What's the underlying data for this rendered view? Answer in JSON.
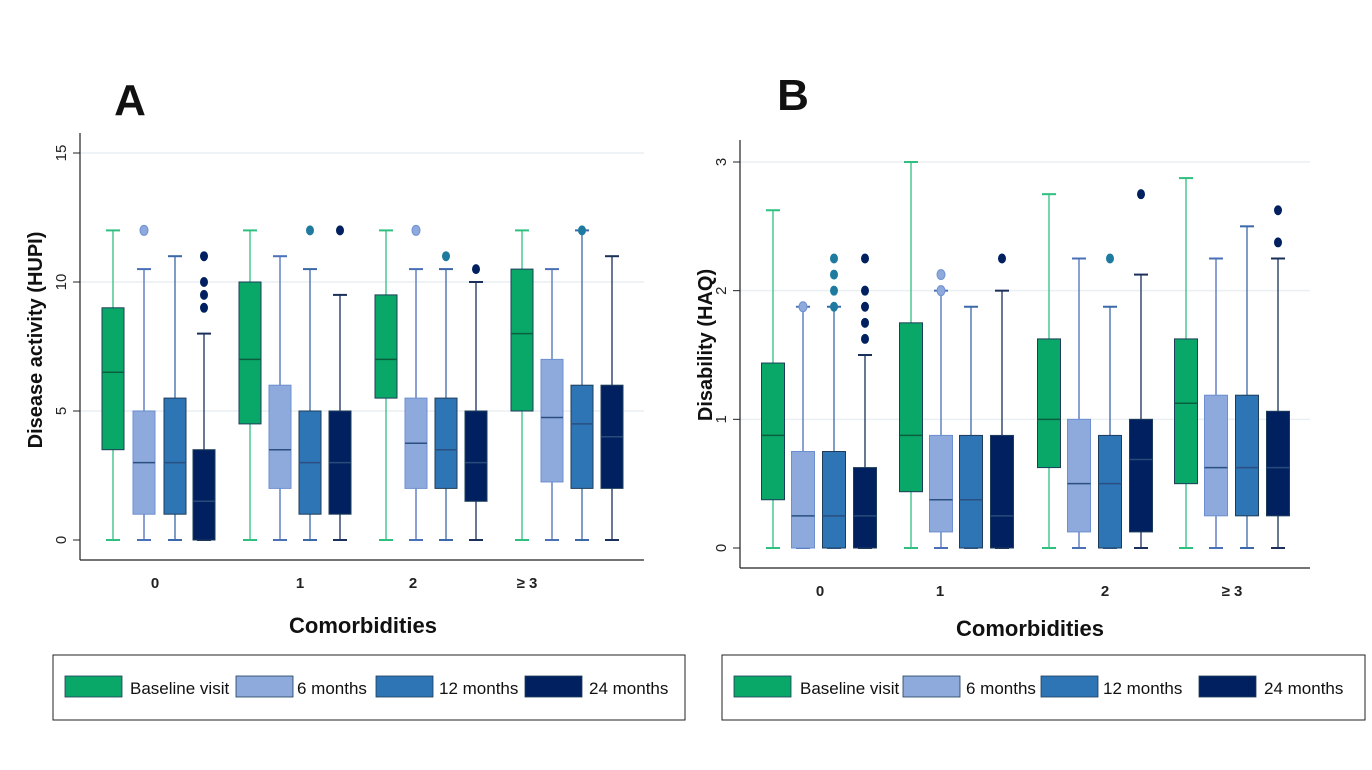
{
  "colors": {
    "baseline": "#0aa868",
    "m6": "#8eaadc",
    "m12": "#2e75b6",
    "m24": "#002060",
    "outlier_m12": "#1f7aa0"
  },
  "chart_data": [
    {
      "type": "box",
      "panel_label": "A",
      "ylabel": "Disease activity (HUPI)",
      "xlabel": "Comorbidities",
      "ylim": [
        0,
        15
      ],
      "yticks": [
        "0",
        "5",
        "10",
        "15"
      ],
      "ytick_values": [
        0,
        5,
        10,
        15
      ],
      "grid": true,
      "legend_position": "bottom",
      "categories": [
        "0",
        "1",
        "2",
        "≥ 3"
      ],
      "legend": [
        "Baseline visit",
        "6 months",
        "12 months",
        "24 months"
      ],
      "series": [
        {
          "name": "Baseline visit",
          "boxes": [
            {
              "min": 0,
              "q1": 3.5,
              "median": 6.5,
              "q3": 9,
              "max": 12,
              "outliers": []
            },
            {
              "min": 0,
              "q1": 4.5,
              "median": 7,
              "q3": 10,
              "max": 12,
              "outliers": []
            },
            {
              "min": 0,
              "q1": 5.5,
              "median": 7,
              "q3": 9.5,
              "max": 12,
              "outliers": []
            },
            {
              "min": 0,
              "q1": 5,
              "median": 8,
              "q3": 10.5,
              "max": 12,
              "outliers": []
            }
          ]
        },
        {
          "name": "6 months",
          "boxes": [
            {
              "min": 0,
              "q1": 1,
              "median": 3,
              "q3": 5,
              "max": 10.5,
              "outliers": [
                12
              ]
            },
            {
              "min": 0,
              "q1": 2,
              "median": 3.5,
              "q3": 6,
              "max": 11,
              "outliers": []
            },
            {
              "min": 0,
              "q1": 2,
              "median": 3.75,
              "q3": 5.5,
              "max": 10.5,
              "outliers": [
                12
              ]
            },
            {
              "min": 0,
              "q1": 2.25,
              "median": 4.75,
              "q3": 7,
              "max": 10.5,
              "outliers": []
            }
          ]
        },
        {
          "name": "12 months",
          "boxes": [
            {
              "min": 0,
              "q1": 1,
              "median": 3,
              "q3": 5.5,
              "max": 11,
              "outliers": []
            },
            {
              "min": 0,
              "q1": 1,
              "median": 3,
              "q3": 5,
              "max": 10.5,
              "outliers": [
                12
              ]
            },
            {
              "min": 0,
              "q1": 2,
              "median": 3.5,
              "q3": 5.5,
              "max": 10.5,
              "outliers": [
                11
              ]
            },
            {
              "min": 0,
              "q1": 2,
              "median": 4.5,
              "q3": 6,
              "max": 12,
              "outliers": [
                12
              ]
            }
          ]
        },
        {
          "name": "24 months",
          "boxes": [
            {
              "min": 0,
              "q1": 0,
              "median": 1.5,
              "q3": 3.5,
              "max": 8,
              "outliers": [
                9,
                9.5,
                10,
                11
              ]
            },
            {
              "min": 0,
              "q1": 1,
              "median": 3,
              "q3": 5,
              "max": 9.5,
              "outliers": [
                12
              ]
            },
            {
              "min": 0,
              "q1": 1.5,
              "median": 3,
              "q3": 5,
              "max": 10,
              "outliers": [
                10.5
              ]
            },
            {
              "min": 0,
              "q1": 2,
              "median": 4,
              "q3": 6,
              "max": 11,
              "outliers": []
            }
          ]
        }
      ]
    },
    {
      "type": "box",
      "panel_label": "B",
      "ylabel": "Disability  (HAQ)",
      "xlabel": "Comorbidities",
      "ylim": [
        0,
        3
      ],
      "yticks": [
        "0",
        "1",
        "2",
        "3"
      ],
      "ytick_values": [
        0,
        1,
        2,
        3
      ],
      "grid": true,
      "legend_position": "bottom",
      "categories": [
        "0",
        "1",
        "2",
        "≥ 3"
      ],
      "legend": [
        "Baseline visit",
        "6 months",
        "12 months",
        "24 months"
      ],
      "series": [
        {
          "name": "Baseline visit",
          "boxes": [
            {
              "min": 0,
              "q1": 0.375,
              "median": 0.875,
              "q3": 1.4375,
              "max": 2.625,
              "outliers": []
            },
            {
              "min": 0,
              "q1": 0.4375,
              "median": 0.875,
              "q3": 1.75,
              "max": 3,
              "outliers": []
            },
            {
              "min": 0,
              "q1": 0.625,
              "median": 1,
              "q3": 1.625,
              "max": 2.75,
              "outliers": []
            },
            {
              "min": 0,
              "q1": 0.5,
              "median": 1.125,
              "q3": 1.625,
              "max": 2.875,
              "outliers": []
            }
          ]
        },
        {
          "name": "6 months",
          "boxes": [
            {
              "min": 0,
              "q1": 0,
              "median": 0.25,
              "q3": 0.75,
              "max": 1.875,
              "outliers": [
                1.875
              ]
            },
            {
              "min": 0,
              "q1": 0.125,
              "median": 0.375,
              "q3": 0.875,
              "max": 2,
              "outliers": [
                2,
                2.125
              ]
            },
            {
              "min": 0,
              "q1": 0.125,
              "median": 0.5,
              "q3": 1,
              "max": 2.25,
              "outliers": []
            },
            {
              "min": 0,
              "q1": 0.25,
              "median": 0.625,
              "q3": 1.1875,
              "max": 2.25,
              "outliers": []
            }
          ]
        },
        {
          "name": "12 months",
          "boxes": [
            {
              "min": 0,
              "q1": 0,
              "median": 0.25,
              "q3": 0.75,
              "max": 1.875,
              "outliers": [
                1.875,
                2,
                2.125,
                2.25
              ]
            },
            {
              "min": 0,
              "q1": 0,
              "median": 0.375,
              "q3": 0.875,
              "max": 1.875,
              "outliers": []
            },
            {
              "min": 0,
              "q1": 0,
              "median": 0.5,
              "q3": 0.875,
              "max": 1.875,
              "outliers": [
                2.25
              ]
            },
            {
              "min": 0,
              "q1": 0.25,
              "median": 0.625,
              "q3": 1.1875,
              "max": 2.5,
              "outliers": []
            }
          ]
        },
        {
          "name": "24 months",
          "boxes": [
            {
              "min": 0,
              "q1": 0,
              "median": 0.25,
              "q3": 0.625,
              "max": 1.5,
              "outliers": [
                1.625,
                1.75,
                1.875,
                2,
                2.25
              ]
            },
            {
              "min": 0,
              "q1": 0,
              "median": 0.25,
              "q3": 0.875,
              "max": 2,
              "outliers": [
                2.25
              ]
            },
            {
              "min": 0,
              "q1": 0.125,
              "median": 0.6875,
              "q3": 1,
              "max": 2.125,
              "outliers": [
                2.75
              ]
            },
            {
              "min": 0,
              "q1": 0.25,
              "median": 0.625,
              "q3": 1.0625,
              "max": 2.25,
              "outliers": [
                2.375,
                2.625
              ]
            }
          ]
        }
      ]
    }
  ]
}
